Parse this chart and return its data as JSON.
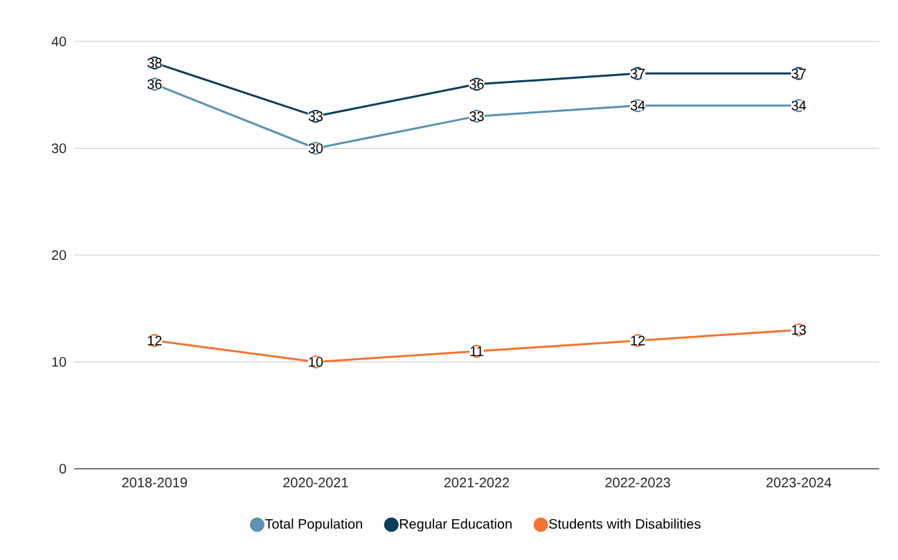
{
  "chart_data": {
    "type": "line",
    "categories": [
      "2018-2019",
      "2020-2021",
      "2021-2022",
      "2022-2023",
      "2023-2024"
    ],
    "series": [
      {
        "name": "Total Population",
        "color": "#5b93b0",
        "values": [
          36,
          30,
          33,
          34,
          34
        ]
      },
      {
        "name": "Regular Education",
        "color": "#0b3f5a",
        "values": [
          38,
          33,
          36,
          37,
          37
        ]
      },
      {
        "name": "Students with Disabilities",
        "color": "#f47530",
        "values": [
          12,
          10,
          11,
          12,
          13
        ]
      }
    ],
    "ylim": [
      0,
      40
    ],
    "yticks": [
      0,
      10,
      20,
      30,
      40
    ],
    "grid": "y",
    "legend": "bottom",
    "marker": "circle",
    "line_style": "solid",
    "data_labels": true
  }
}
